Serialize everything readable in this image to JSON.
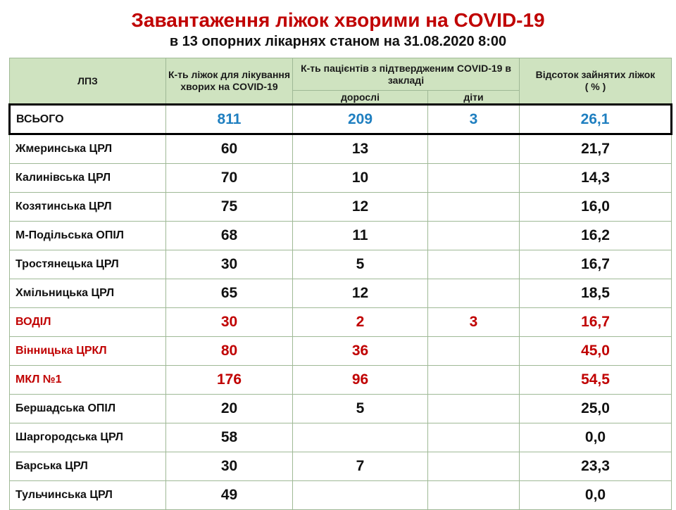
{
  "title": "Завантаження ліжок хворими на COVID-19",
  "subtitle": "в 13 опорних лікарнях станом  на 31.08.2020  8:00",
  "table": {
    "headers": {
      "lpz": "ЛПЗ",
      "beds": "К-ть ліжок для лікування хворих на  COVID-19",
      "patients": "К-ть пацієнтів  з підтвердженим COVID-19 в закладі",
      "adults": "дорослі",
      "children": "діти",
      "percent_line1": "Відсоток зайнятих ліжок",
      "percent_line2": "( % )"
    },
    "total": {
      "name": "ВСЬОГО",
      "beds": "811",
      "adults": "209",
      "children": "3",
      "percent": "26,1"
    },
    "rows": [
      {
        "name": "Жмеринська ЦРЛ",
        "beds": "60",
        "adults": "13",
        "children": "",
        "percent": "21,7",
        "highlight": false
      },
      {
        "name": "Калинівська ЦРЛ",
        "beds": "70",
        "adults": "10",
        "children": "",
        "percent": "14,3",
        "highlight": false
      },
      {
        "name": "Козятинська ЦРЛ",
        "beds": "75",
        "adults": "12",
        "children": "",
        "percent": "16,0",
        "highlight": false
      },
      {
        "name": "М-Подільська ОПІЛ",
        "beds": "68",
        "adults": "11",
        "children": "",
        "percent": "16,2",
        "highlight": false
      },
      {
        "name": "Тростянецька ЦРЛ",
        "beds": "30",
        "adults": "5",
        "children": "",
        "percent": "16,7",
        "highlight": false
      },
      {
        "name": "Хмільницька ЦРЛ",
        "beds": "65",
        "adults": "12",
        "children": "",
        "percent": "18,5",
        "highlight": false
      },
      {
        "name": "ВОДІЛ",
        "beds": "30",
        "adults": "2",
        "children": "3",
        "percent": "16,7",
        "highlight": true
      },
      {
        "name": "Вінницька ЦРКЛ",
        "beds": "80",
        "adults": "36",
        "children": "",
        "percent": "45,0",
        "highlight": true
      },
      {
        "name": "МКЛ №1",
        "beds": "176",
        "adults": "96",
        "children": "",
        "percent": "54,5",
        "highlight": true
      },
      {
        "name": "Бершадська ОПІЛ",
        "beds": "20",
        "adults": "5",
        "children": "",
        "percent": "25,0",
        "highlight": false
      },
      {
        "name": "Шаргородська  ЦРЛ",
        "beds": "58",
        "adults": "",
        "children": "",
        "percent": "0,0",
        "highlight": false
      },
      {
        "name": "Барська ЦРЛ",
        "beds": "30",
        "adults": "7",
        "children": "",
        "percent": "23,3",
        "highlight": false
      },
      {
        "name": "Тульчинська ЦРЛ",
        "beds": "49",
        "adults": "",
        "children": "",
        "percent": "0,0",
        "highlight": false
      }
    ]
  },
  "colors": {
    "title": "#c00000",
    "header_bg": "#cfe3c0",
    "total_value": "#1f7fc0",
    "highlight_row": "#c00000"
  }
}
